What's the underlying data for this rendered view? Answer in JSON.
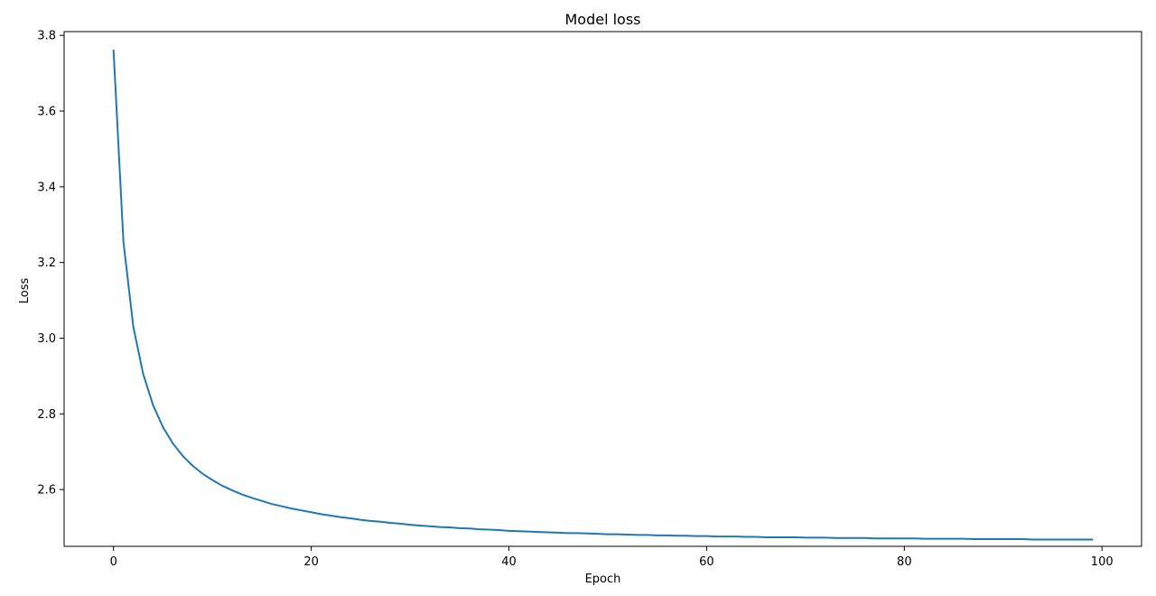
{
  "chart_data": {
    "type": "line",
    "title": "Model loss",
    "xlabel": "Epoch",
    "ylabel": "Loss",
    "xlim": [
      -5,
      104
    ],
    "ylim": [
      2.45,
      3.81
    ],
    "grid": false,
    "x_ticks": [
      0,
      20,
      40,
      60,
      80,
      100
    ],
    "y_ticks": [
      2.6,
      2.8,
      3.0,
      3.2,
      3.4,
      3.6,
      3.8
    ],
    "series": [
      {
        "color": "#1f77b4",
        "x": [
          0,
          1,
          2,
          3,
          4,
          5,
          6,
          7,
          8,
          9,
          10,
          11,
          12,
          13,
          14,
          15,
          16,
          17,
          18,
          19,
          20,
          21,
          22,
          23,
          24,
          25,
          26,
          27,
          28,
          29,
          30,
          31,
          32,
          33,
          34,
          35,
          36,
          37,
          38,
          39,
          40,
          41,
          42,
          43,
          44,
          45,
          46,
          47,
          48,
          49,
          50,
          51,
          52,
          53,
          54,
          55,
          56,
          57,
          58,
          59,
          60,
          61,
          62,
          63,
          64,
          65,
          66,
          67,
          68,
          69,
          70,
          71,
          72,
          73,
          74,
          75,
          76,
          77,
          78,
          79,
          80,
          81,
          82,
          83,
          84,
          85,
          86,
          87,
          88,
          89,
          90,
          91,
          92,
          93,
          94,
          95,
          96,
          97,
          98,
          99
        ],
        "y": [
          3.76,
          3.255,
          3.03,
          2.905,
          2.823,
          2.765,
          2.722,
          2.689,
          2.663,
          2.642,
          2.625,
          2.61,
          2.598,
          2.587,
          2.578,
          2.57,
          2.562,
          2.556,
          2.55,
          2.545,
          2.54,
          2.535,
          2.531,
          2.527,
          2.524,
          2.52,
          2.517,
          2.515,
          2.512,
          2.51,
          2.507,
          2.505,
          2.503,
          2.501,
          2.5,
          2.498,
          2.497,
          2.495,
          2.494,
          2.493,
          2.491,
          2.49,
          2.489,
          2.488,
          2.487,
          2.486,
          2.485,
          2.485,
          2.484,
          2.483,
          2.482,
          2.482,
          2.481,
          2.48,
          2.48,
          2.479,
          2.479,
          2.478,
          2.478,
          2.477,
          2.477,
          2.476,
          2.476,
          2.476,
          2.475,
          2.475,
          2.474,
          2.474,
          2.474,
          2.474,
          2.473,
          2.473,
          2.473,
          2.472,
          2.472,
          2.472,
          2.472,
          2.471,
          2.471,
          2.471,
          2.471,
          2.471,
          2.47,
          2.47,
          2.47,
          2.47,
          2.47,
          2.469,
          2.469,
          2.469,
          2.469,
          2.469,
          2.469,
          2.468,
          2.468,
          2.468,
          2.468,
          2.468,
          2.468,
          2.468
        ]
      }
    ]
  }
}
